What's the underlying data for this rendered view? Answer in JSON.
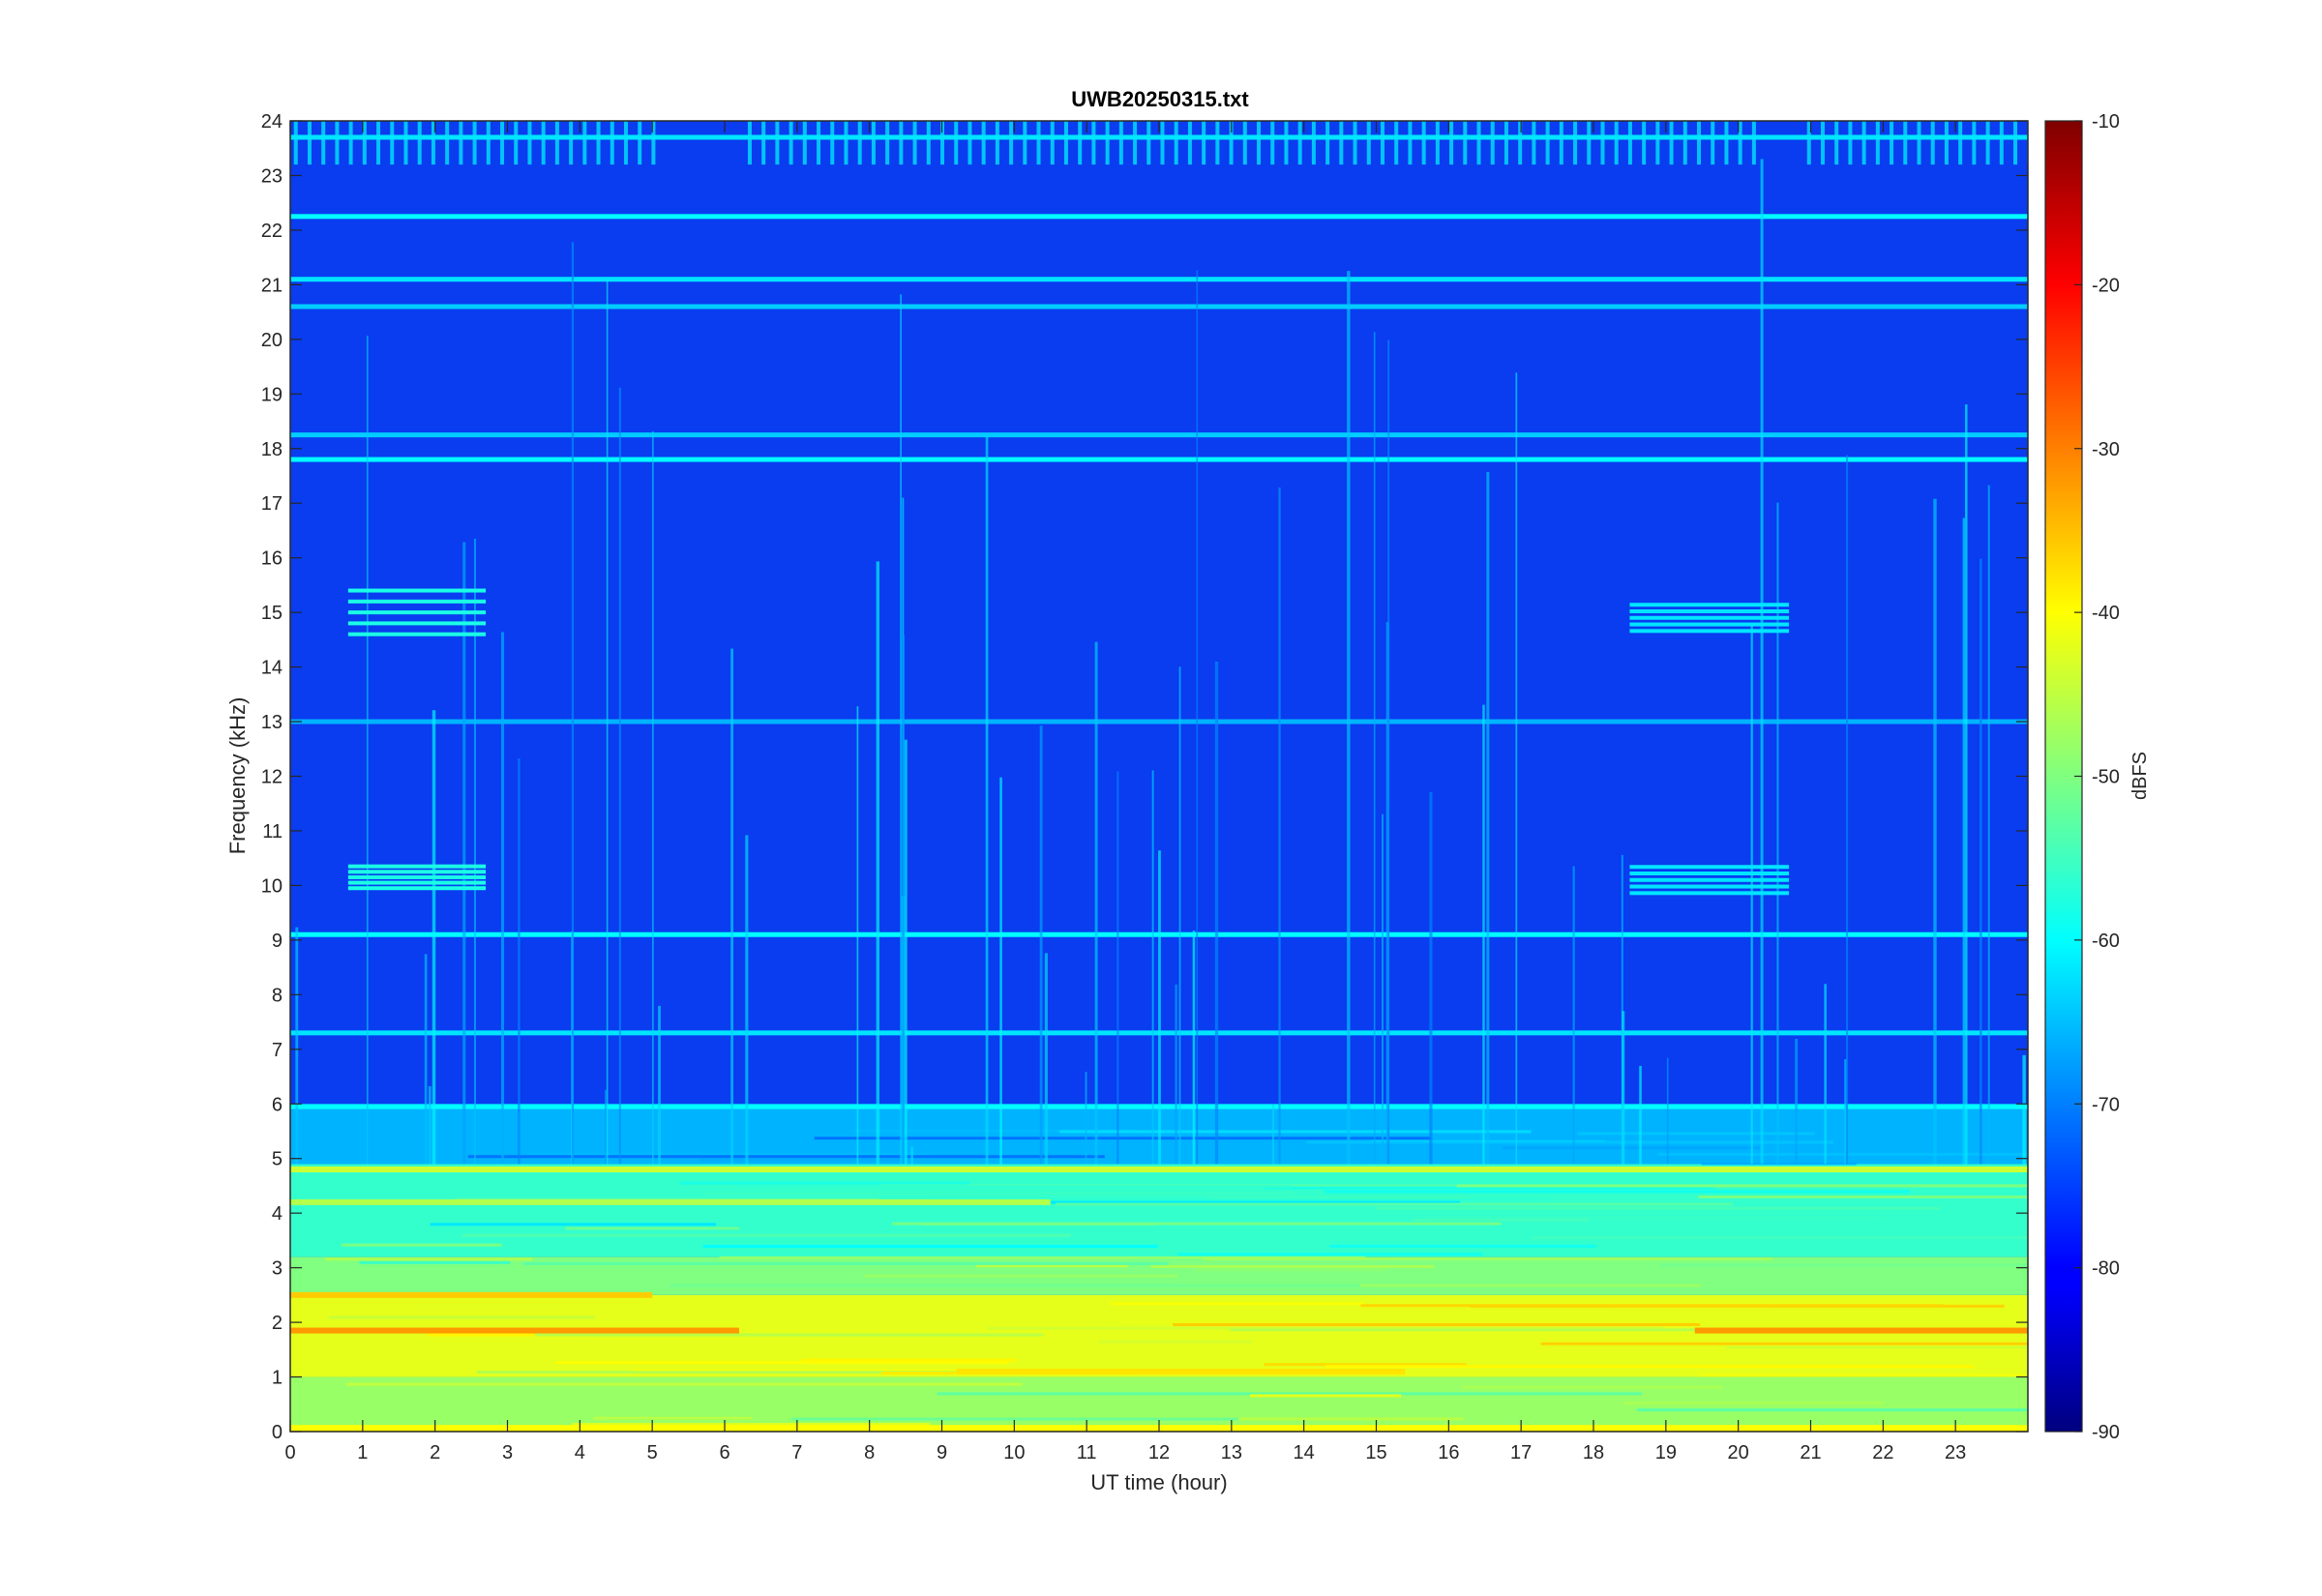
{
  "chart_data": {
    "type": "heatmap",
    "title": "UWB20250315.txt",
    "xlabel": "UT time (hour)",
    "ylabel": "Frequency (kHz)",
    "xlim": [
      0,
      24
    ],
    "ylim": [
      0,
      24
    ],
    "x_ticks": [
      0,
      1,
      2,
      3,
      4,
      5,
      6,
      7,
      8,
      9,
      10,
      11,
      12,
      13,
      14,
      15,
      16,
      17,
      18,
      19,
      20,
      21,
      22,
      23
    ],
    "y_ticks": [
      0,
      1,
      2,
      3,
      4,
      5,
      6,
      7,
      8,
      9,
      10,
      11,
      12,
      13,
      14,
      15,
      16,
      17,
      18,
      19,
      20,
      21,
      22,
      23,
      24
    ],
    "colormap": "jet",
    "colorbar": {
      "label": "dBFS",
      "range": [
        -90,
        -10
      ],
      "ticks": [
        -90,
        -80,
        -70,
        -60,
        -50,
        -40,
        -30,
        -20,
        -10
      ]
    },
    "features": {
      "background_level_dbfs": -72,
      "low_band_level_dbfs": [
        {
          "f_min": 0,
          "f_max": 1,
          "level": -48
        },
        {
          "f_min": 1,
          "f_max": 2.5,
          "level": -42
        },
        {
          "f_min": 2.5,
          "f_max": 3.2,
          "level": -50
        },
        {
          "f_min": 3.2,
          "f_max": 4.9,
          "level": -56
        },
        {
          "f_min": 4.9,
          "f_max": 6,
          "level": -66
        }
      ],
      "strong_lines_khz": [
        {
          "f": 1.85,
          "t_start": 0,
          "t_end": 6.2,
          "level": -32
        },
        {
          "f": 1.85,
          "t_start": 19.4,
          "t_end": 24,
          "level": -32
        },
        {
          "f": 1.1,
          "t_start": 9.2,
          "t_end": 15.4,
          "level": -38
        },
        {
          "f": 2.5,
          "t_start": 0,
          "t_end": 5,
          "level": -36
        },
        {
          "f": 4.2,
          "t_start": 0,
          "t_end": 10.5,
          "level": -46
        },
        {
          "f": 4.8,
          "t_start": 0,
          "t_end": 24,
          "level": -44
        }
      ],
      "horizontal_lines_khz": [
        {
          "f": 5.95,
          "t_start": 0,
          "t_end": 24,
          "level": -60
        },
        {
          "f": 7.3,
          "t_start": 0,
          "t_end": 24,
          "level": -62
        },
        {
          "f": 9.1,
          "t_start": 0,
          "t_end": 24,
          "level": -60
        },
        {
          "f": 13.0,
          "t_start": 0,
          "t_end": 24,
          "level": -66
        },
        {
          "f": 17.8,
          "t_start": 0,
          "t_end": 24,
          "level": -60
        },
        {
          "f": 18.25,
          "t_start": 0,
          "t_end": 24,
          "level": -64
        },
        {
          "f": 20.6,
          "t_start": 0,
          "t_end": 24,
          "level": -64
        },
        {
          "f": 21.1,
          "t_start": 0,
          "t_end": 24,
          "level": -62
        },
        {
          "f": 22.25,
          "t_start": 0,
          "t_end": 24,
          "level": -60
        },
        {
          "f": 23.7,
          "t_start": 0,
          "t_end": 24,
          "level": -62
        }
      ],
      "burst_patches": [
        {
          "t_start": 0.8,
          "t_end": 2.7,
          "f_min": 14.5,
          "f_max": 15.5,
          "level": -58
        },
        {
          "t_start": 0.8,
          "t_end": 2.7,
          "f_min": 9.9,
          "f_max": 10.4,
          "level": -58
        },
        {
          "t_start": 18.5,
          "t_end": 20.7,
          "f_min": 14.6,
          "f_max": 15.2,
          "level": -62
        },
        {
          "t_start": 18.5,
          "t_end": 20.7,
          "f_min": 9.8,
          "f_max": 10.4,
          "level": -62
        }
      ]
    }
  }
}
